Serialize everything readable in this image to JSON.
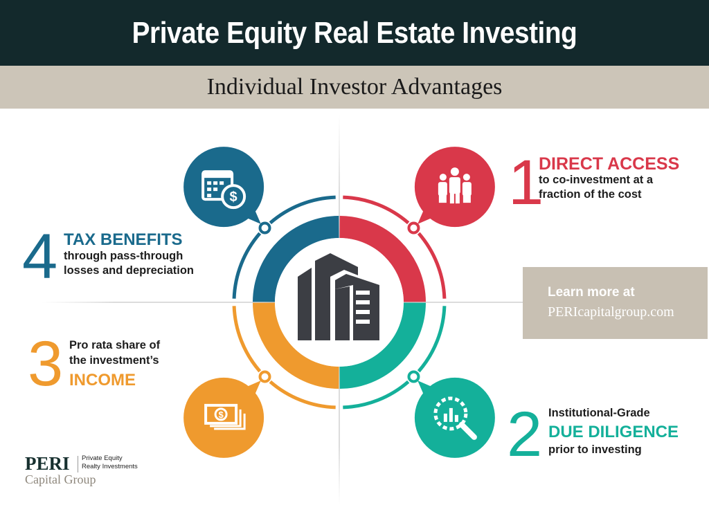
{
  "header": {
    "title": "Private Equity Real Estate Investing",
    "subtitle": "Individual Investor Advantages"
  },
  "colors": {
    "header_bg": "#13292c",
    "band_bg": "#ccc5b8",
    "blue": "#1a6a8c",
    "red": "#d9384a",
    "teal": "#14b09a",
    "orange": "#ef9a2e",
    "building": "#3c3e44"
  },
  "center_icon": "office-building-icon",
  "advantages": [
    {
      "number": "1",
      "heading": "DIRECT ACCESS",
      "lines": [
        "to co-investment at a",
        "fraction of the cost"
      ],
      "icon": "people-group-icon"
    },
    {
      "number": "2",
      "pre": "Institutional-Grade",
      "heading": "DUE DILIGENCE",
      "lines": [
        "prior to investing"
      ],
      "icon": "magnifier-chart-icon"
    },
    {
      "number": "3",
      "lines": [
        "Pro rata share of",
        "the investment’s"
      ],
      "heading": "INCOME",
      "icon": "cash-stack-icon"
    },
    {
      "number": "4",
      "heading": "TAX BENEFITS",
      "lines": [
        "through pass-through",
        "losses and depreciation"
      ],
      "icon": "calendar-dollar-icon"
    }
  ],
  "cta": {
    "line1": "Learn more at",
    "line2": "PERIcapitalgroup.com"
  },
  "logo": {
    "name": "PERI",
    "tagline": [
      "Private Equity",
      "Realty Investments"
    ],
    "subname": "Capital Group"
  }
}
